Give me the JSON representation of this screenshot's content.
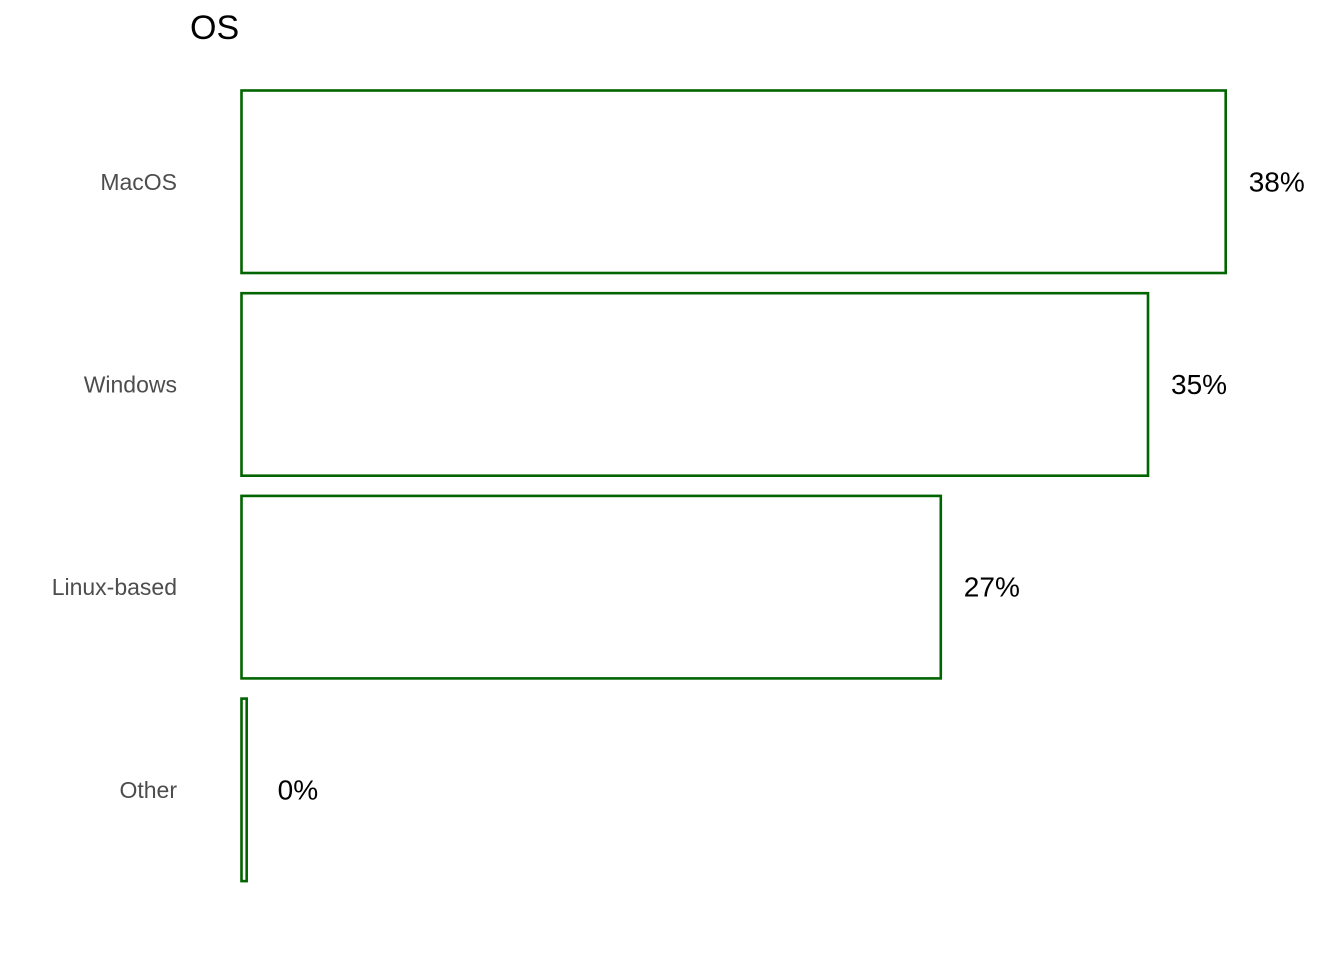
{
  "chart_data": {
    "type": "bar",
    "orientation": "horizontal",
    "title": "OS",
    "categories": [
      "MacOS",
      "Windows",
      "Linux-based",
      "Other"
    ],
    "values": [
      38,
      35,
      27,
      0.2
    ],
    "value_labels": [
      "38%",
      "35%",
      "27%",
      "0%"
    ],
    "value_unit": "%",
    "bar_style": "outline",
    "bar_color": "#006400",
    "grid": false,
    "legend": "none"
  }
}
